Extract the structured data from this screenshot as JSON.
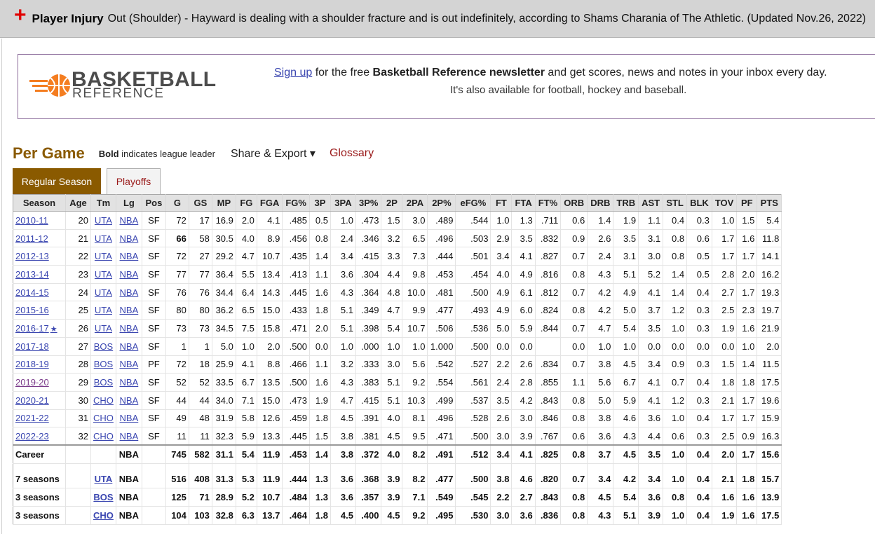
{
  "injury": {
    "title": "Player Injury",
    "text": "Out (Shoulder) - Hayward is dealing with a shoulder fracture and is out indefinitely, according to Shams Charania of The Athletic. (Updated Nov.26, 2022)"
  },
  "promo": {
    "logo_word1": "BASKETBALL",
    "logo_word2": "REFERENCE",
    "signup": "Sign up",
    "line1_mid": " for the free ",
    "newsletter": "Basketball Reference newsletter",
    "line1_end": " and get scores, news and notes in your inbox every day.",
    "line2": "It's also available for football, hockey and baseball."
  },
  "section": {
    "title": "Per Game",
    "bold_word": "Bold",
    "bold_rest": " indicates league leader",
    "share": "Share & Export ▾",
    "glossary": "Glossary"
  },
  "tabs": {
    "regular": "Regular Season",
    "playoffs": "Playoffs"
  },
  "columns": [
    "Season",
    "Age",
    "Tm",
    "Lg",
    "Pos",
    "G",
    "GS",
    "MP",
    "FG",
    "FGA",
    "FG%",
    "3P",
    "3PA",
    "3P%",
    "2P",
    "2PA",
    "2P%",
    "eFG%",
    "FT",
    "FTA",
    "FT%",
    "ORB",
    "DRB",
    "TRB",
    "AST",
    "STL",
    "BLK",
    "TOV",
    "PF",
    "PTS"
  ],
  "rows": [
    [
      "2010-11",
      "20",
      "UTA",
      "NBA",
      "SF",
      "72",
      "17",
      "16.9",
      "2.0",
      "4.1",
      ".485",
      "0.5",
      "1.0",
      ".473",
      "1.5",
      "3.0",
      ".489",
      ".544",
      "1.0",
      "1.3",
      ".711",
      "0.6",
      "1.4",
      "1.9",
      "1.1",
      "0.4",
      "0.3",
      "1.0",
      "1.5",
      "5.4"
    ],
    [
      "2011-12",
      "21",
      "UTA",
      "NBA",
      "SF",
      "66",
      "58",
      "30.5",
      "4.0",
      "8.9",
      ".456",
      "0.8",
      "2.4",
      ".346",
      "3.2",
      "6.5",
      ".496",
      ".503",
      "2.9",
      "3.5",
      ".832",
      "0.9",
      "2.6",
      "3.5",
      "3.1",
      "0.8",
      "0.6",
      "1.7",
      "1.6",
      "11.8"
    ],
    [
      "2012-13",
      "22",
      "UTA",
      "NBA",
      "SF",
      "72",
      "27",
      "29.2",
      "4.7",
      "10.7",
      ".435",
      "1.4",
      "3.4",
      ".415",
      "3.3",
      "7.3",
      ".444",
      ".501",
      "3.4",
      "4.1",
      ".827",
      "0.7",
      "2.4",
      "3.1",
      "3.0",
      "0.8",
      "0.5",
      "1.7",
      "1.7",
      "14.1"
    ],
    [
      "2013-14",
      "23",
      "UTA",
      "NBA",
      "SF",
      "77",
      "77",
      "36.4",
      "5.5",
      "13.4",
      ".413",
      "1.1",
      "3.6",
      ".304",
      "4.4",
      "9.8",
      ".453",
      ".454",
      "4.0",
      "4.9",
      ".816",
      "0.8",
      "4.3",
      "5.1",
      "5.2",
      "1.4",
      "0.5",
      "2.8",
      "2.0",
      "16.2"
    ],
    [
      "2014-15",
      "24",
      "UTA",
      "NBA",
      "SF",
      "76",
      "76",
      "34.4",
      "6.4",
      "14.3",
      ".445",
      "1.6",
      "4.3",
      ".364",
      "4.8",
      "10.0",
      ".481",
      ".500",
      "4.9",
      "6.1",
      ".812",
      "0.7",
      "4.2",
      "4.9",
      "4.1",
      "1.4",
      "0.4",
      "2.7",
      "1.7",
      "19.3"
    ],
    [
      "2015-16",
      "25",
      "UTA",
      "NBA",
      "SF",
      "80",
      "80",
      "36.2",
      "6.5",
      "15.0",
      ".433",
      "1.8",
      "5.1",
      ".349",
      "4.7",
      "9.9",
      ".477",
      ".493",
      "4.9",
      "6.0",
      ".824",
      "0.8",
      "4.2",
      "5.0",
      "3.7",
      "1.2",
      "0.3",
      "2.5",
      "2.3",
      "19.7"
    ],
    [
      "2016-17",
      "26",
      "UTA",
      "NBA",
      "SF",
      "73",
      "73",
      "34.5",
      "7.5",
      "15.8",
      ".471",
      "2.0",
      "5.1",
      ".398",
      "5.4",
      "10.7",
      ".506",
      ".536",
      "5.0",
      "5.9",
      ".844",
      "0.7",
      "4.7",
      "5.4",
      "3.5",
      "1.0",
      "0.3",
      "1.9",
      "1.6",
      "21.9"
    ],
    [
      "2017-18",
      "27",
      "BOS",
      "NBA",
      "SF",
      "1",
      "1",
      "5.0",
      "1.0",
      "2.0",
      ".500",
      "0.0",
      "1.0",
      ".000",
      "1.0",
      "1.0",
      "1.000",
      ".500",
      "0.0",
      "0.0",
      "",
      "0.0",
      "1.0",
      "1.0",
      "0.0",
      "0.0",
      "0.0",
      "0.0",
      "1.0",
      "2.0"
    ],
    [
      "2018-19",
      "28",
      "BOS",
      "NBA",
      "PF",
      "72",
      "18",
      "25.9",
      "4.1",
      "8.8",
      ".466",
      "1.1",
      "3.2",
      ".333",
      "3.0",
      "5.6",
      ".542",
      ".527",
      "2.2",
      "2.6",
      ".834",
      "0.7",
      "3.8",
      "4.5",
      "3.4",
      "0.9",
      "0.3",
      "1.5",
      "1.4",
      "11.5"
    ],
    [
      "2019-20",
      "29",
      "BOS",
      "NBA",
      "SF",
      "52",
      "52",
      "33.5",
      "6.7",
      "13.5",
      ".500",
      "1.6",
      "4.3",
      ".383",
      "5.1",
      "9.2",
      ".554",
      ".561",
      "2.4",
      "2.8",
      ".855",
      "1.1",
      "5.6",
      "6.7",
      "4.1",
      "0.7",
      "0.4",
      "1.8",
      "1.8",
      "17.5"
    ],
    [
      "2020-21",
      "30",
      "CHO",
      "NBA",
      "SF",
      "44",
      "44",
      "34.0",
      "7.1",
      "15.0",
      ".473",
      "1.9",
      "4.7",
      ".415",
      "5.1",
      "10.3",
      ".499",
      ".537",
      "3.5",
      "4.2",
      ".843",
      "0.8",
      "5.0",
      "5.9",
      "4.1",
      "1.2",
      "0.3",
      "2.1",
      "1.7",
      "19.6"
    ],
    [
      "2021-22",
      "31",
      "CHO",
      "NBA",
      "SF",
      "49",
      "48",
      "31.9",
      "5.8",
      "12.6",
      ".459",
      "1.8",
      "4.5",
      ".391",
      "4.0",
      "8.1",
      ".496",
      ".528",
      "2.6",
      "3.0",
      ".846",
      "0.8",
      "3.8",
      "4.6",
      "3.6",
      "1.0",
      "0.4",
      "1.7",
      "1.7",
      "15.9"
    ],
    [
      "2022-23",
      "32",
      "CHO",
      "NBA",
      "SF",
      "11",
      "11",
      "32.3",
      "5.9",
      "13.3",
      ".445",
      "1.5",
      "3.8",
      ".381",
      "4.5",
      "9.5",
      ".471",
      ".500",
      "3.0",
      "3.9",
      ".767",
      "0.6",
      "3.6",
      "4.3",
      "4.4",
      "0.6",
      "0.3",
      "2.5",
      "0.9",
      "16.3"
    ]
  ],
  "career": [
    "Career",
    "",
    "",
    "NBA",
    "",
    "745",
    "582",
    "31.1",
    "5.4",
    "11.9",
    ".453",
    "1.4",
    "3.8",
    ".372",
    "4.0",
    "8.2",
    ".491",
    ".512",
    "3.4",
    "4.1",
    ".825",
    "0.8",
    "3.7",
    "4.5",
    "3.5",
    "1.0",
    "0.4",
    "2.0",
    "1.7",
    "15.6"
  ],
  "team_rows": [
    [
      "7 seasons",
      "",
      "UTA",
      "NBA",
      "",
      "516",
      "408",
      "31.3",
      "5.3",
      "11.9",
      ".444",
      "1.3",
      "3.6",
      ".368",
      "3.9",
      "8.2",
      ".477",
      ".500",
      "3.8",
      "4.6",
      ".820",
      "0.7",
      "3.4",
      "4.2",
      "3.4",
      "1.0",
      "0.4",
      "2.1",
      "1.8",
      "15.7"
    ],
    [
      "3 seasons",
      "",
      "BOS",
      "NBA",
      "",
      "125",
      "71",
      "28.9",
      "5.2",
      "10.7",
      ".484",
      "1.3",
      "3.6",
      ".357",
      "3.9",
      "7.1",
      ".549",
      ".545",
      "2.2",
      "2.7",
      ".843",
      "0.8",
      "4.5",
      "5.4",
      "3.6",
      "0.8",
      "0.4",
      "1.6",
      "1.6",
      "13.9"
    ],
    [
      "3 seasons",
      "",
      "CHO",
      "NBA",
      "",
      "104",
      "103",
      "32.8",
      "6.3",
      "13.7",
      ".464",
      "1.8",
      "4.5",
      ".400",
      "4.5",
      "9.2",
      ".495",
      ".530",
      "3.0",
      "3.6",
      ".836",
      "0.8",
      "4.3",
      "5.1",
      "3.9",
      "1.0",
      "0.4",
      "1.9",
      "1.6",
      "17.5"
    ]
  ],
  "visited_seasons": [
    "2019-20"
  ],
  "league_leader_cells": [
    {
      "row": 1,
      "col": 5
    }
  ],
  "allstar_row": 6,
  "colors": {
    "accent_brown": "#8a5a00",
    "link_blue": "#3a46b0",
    "injury_red": "#e00000",
    "glossary_red": "#9a1a1a"
  }
}
